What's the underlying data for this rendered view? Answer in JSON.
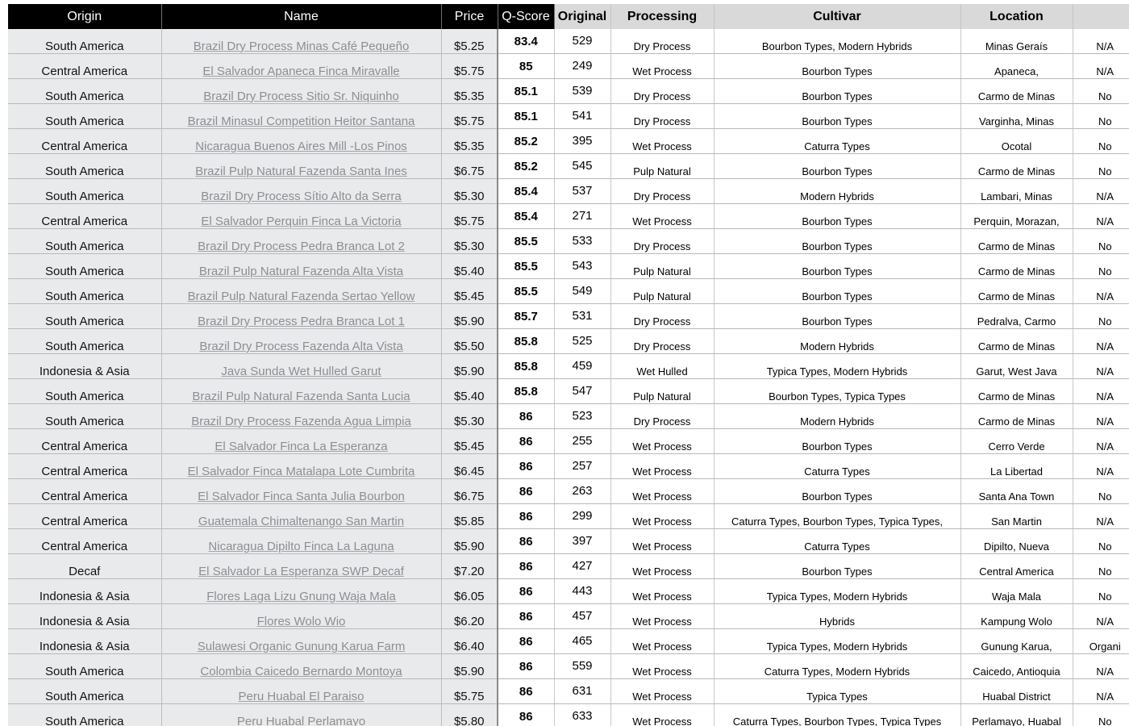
{
  "headers": {
    "origin": "Origin",
    "name": "Name",
    "price": "Price",
    "q_score": "Q-Score",
    "original": "Original",
    "processing": "Processing",
    "cultivar": "Cultivar",
    "location": "Location",
    "flag": ""
  },
  "rows": [
    {
      "origin": "South America",
      "name": "Brazil Dry Process Minas Café Pequeño",
      "price": "$5.25",
      "q_score": "83.4",
      "original": "529",
      "processing": "Dry Process",
      "cultivar": "Bourbon Types, Modern Hybrids",
      "location": "Minas Geraís",
      "flag": "N/A"
    },
    {
      "origin": "Central America",
      "name": "El Salvador Apaneca Finca Miravalle",
      "price": "$5.75",
      "q_score": "85",
      "original": "249",
      "processing": "Wet Process",
      "cultivar": "Bourbon Types",
      "location": "Apaneca,",
      "flag": "N/A"
    },
    {
      "origin": "South America",
      "name": "Brazil Dry Process Sitio Sr. Niquinho",
      "price": "$5.35",
      "q_score": "85.1",
      "original": "539",
      "processing": "Dry Process",
      "cultivar": "Bourbon Types",
      "location": "Carmo de Minas",
      "flag": "No"
    },
    {
      "origin": "South America",
      "name": "Brazil Minasul Competition Heitor Santana",
      "price": "$5.75",
      "q_score": "85.1",
      "original": "541",
      "processing": "Dry Process",
      "cultivar": "Bourbon Types",
      "location": "Varginha, Minas",
      "flag": "No"
    },
    {
      "origin": "Central America",
      "name": "Nicaragua Buenos Aires Mill -Los Pinos",
      "price": "$5.35",
      "q_score": "85.2",
      "original": "395",
      "processing": "Wet Process",
      "cultivar": "Caturra Types",
      "location": "Ocotal",
      "flag": "No"
    },
    {
      "origin": "South America",
      "name": "Brazil Pulp Natural Fazenda Santa Ines",
      "price": "$6.75",
      "q_score": "85.2",
      "original": "545",
      "processing": "Pulp Natural",
      "cultivar": "Bourbon Types",
      "location": "Carmo de Minas",
      "flag": "No"
    },
    {
      "origin": "South America",
      "name": "Brazil Dry Process Sítio Alto da Serra",
      "price": "$5.30",
      "q_score": "85.4",
      "original": "537",
      "processing": "Dry Process",
      "cultivar": "Modern Hybrids",
      "location": "Lambari, Minas",
      "flag": "N/A"
    },
    {
      "origin": "Central America",
      "name": "El Salvador Perquin Finca La Victoria",
      "price": "$5.75",
      "q_score": "85.4",
      "original": "271",
      "processing": "Wet Process",
      "cultivar": "Bourbon Types",
      "location": "Perquin, Morazan,",
      "flag": "N/A"
    },
    {
      "origin": "South America",
      "name": "Brazil Dry Process Pedra Branca Lot 2",
      "price": "$5.30",
      "q_score": "85.5",
      "original": "533",
      "processing": "Dry Process",
      "cultivar": "Bourbon Types",
      "location": "Carmo de Minas",
      "flag": "No"
    },
    {
      "origin": "South America",
      "name": "Brazil Pulp Natural Fazenda Alta Vista",
      "price": "$5.40",
      "q_score": "85.5",
      "original": "543",
      "processing": "Pulp Natural",
      "cultivar": "Bourbon Types",
      "location": "Carmo de Minas",
      "flag": "No"
    },
    {
      "origin": "South America",
      "name": "Brazil Pulp Natural Fazenda Sertao Yellow",
      "price": "$5.45",
      "q_score": "85.5",
      "original": "549",
      "processing": "Pulp Natural",
      "cultivar": "Bourbon Types",
      "location": "Carmo de Minas",
      "flag": "N/A"
    },
    {
      "origin": "South America",
      "name": "Brazil Dry Process Pedra Branca Lot 1",
      "price": "$5.90",
      "q_score": "85.7",
      "original": "531",
      "processing": "Dry Process",
      "cultivar": "Bourbon Types",
      "location": "Pedralva, Carmo",
      "flag": "No"
    },
    {
      "origin": "South America",
      "name": "Brazil Dry Process Fazenda Alta Vista",
      "price": "$5.50",
      "q_score": "85.8",
      "original": "525",
      "processing": "Dry Process",
      "cultivar": "Modern Hybrids",
      "location": "Carmo de Minas",
      "flag": "N/A"
    },
    {
      "origin": "Indonesia & Asia",
      "name": "Java Sunda Wet Hulled Garut",
      "price": "$5.90",
      "q_score": "85.8",
      "original": "459",
      "processing": "Wet Hulled",
      "cultivar": "Typica Types, Modern Hybrids",
      "location": "Garut, West Java",
      "flag": "N/A"
    },
    {
      "origin": "South America",
      "name": "Brazil Pulp Natural Fazenda Santa Lucia",
      "price": "$5.40",
      "q_score": "85.8",
      "original": "547",
      "processing": "Pulp Natural",
      "cultivar": "Bourbon Types, Typica Types",
      "location": "Carmo de Minas",
      "flag": "N/A"
    },
    {
      "origin": "South America",
      "name": "Brazil Dry Process Fazenda Agua Limpia",
      "price": "$5.30",
      "q_score": "86",
      "original": "523",
      "processing": "Dry Process",
      "cultivar": "Modern Hybrids",
      "location": "Carmo de Minas",
      "flag": "N/A"
    },
    {
      "origin": "Central America",
      "name": "El Salvador Finca La Esperanza",
      "price": "$5.45",
      "q_score": "86",
      "original": "255",
      "processing": "Wet Process",
      "cultivar": "Bourbon Types",
      "location": "Cerro Verde",
      "flag": "N/A"
    },
    {
      "origin": "Central America",
      "name": "El Salvador Finca Matalapa Lote Cumbrita",
      "price": "$6.45",
      "q_score": "86",
      "original": "257",
      "processing": "Wet Process",
      "cultivar": "Caturra Types",
      "location": "La Libertad",
      "flag": "N/A"
    },
    {
      "origin": "Central America",
      "name": "El Salvador Finca Santa Julia Bourbon",
      "price": "$6.75",
      "q_score": "86",
      "original": "263",
      "processing": "Wet Process",
      "cultivar": "Bourbon Types",
      "location": "Santa Ana Town",
      "flag": "No"
    },
    {
      "origin": "Central America",
      "name": "Guatemala Chimaltenango San Martin",
      "price": "$5.85",
      "q_score": "86",
      "original": "299",
      "processing": "Wet Process",
      "cultivar": "Caturra Types, Bourbon Types, Typica Types,",
      "location": "San Martin",
      "flag": "N/A"
    },
    {
      "origin": "Central America",
      "name": "Nicaragua Dipilto Finca La Laguna",
      "price": "$5.90",
      "q_score": "86",
      "original": "397",
      "processing": "Wet Process",
      "cultivar": "Caturra Types",
      "location": "Dipilto, Nueva",
      "flag": "No"
    },
    {
      "origin": "Decaf",
      "name": "El Salvador La Esperanza SWP Decaf",
      "price": "$7.20",
      "q_score": "86",
      "original": "427",
      "processing": "Wet Process",
      "cultivar": "Bourbon Types",
      "location": "Central America",
      "flag": "No"
    },
    {
      "origin": "Indonesia & Asia",
      "name": "Flores Laga Lizu Gnung Waja Mala",
      "price": "$6.05",
      "q_score": "86",
      "original": "443",
      "processing": "Wet Process",
      "cultivar": "Typica Types, Modern Hybrids",
      "location": "Waja Mala",
      "flag": "No"
    },
    {
      "origin": "Indonesia & Asia",
      "name": "Flores Wolo Wio",
      "price": "$6.20",
      "q_score": "86",
      "original": "457",
      "processing": "Wet Process",
      "cultivar": "Hybrids",
      "location": "Kampung Wolo",
      "flag": "N/A"
    },
    {
      "origin": "Indonesia & Asia",
      "name": "Sulawesi Organic Gunung Karua Farm",
      "price": "$6.40",
      "q_score": "86",
      "original": "465",
      "processing": "Wet Process",
      "cultivar": "Typica Types, Modern Hybrids",
      "location": "Gunung Karua,",
      "flag": "Organi"
    },
    {
      "origin": "South America",
      "name": "Colombia Caicedo Bernardo Montoya",
      "price": "$5.90",
      "q_score": "86",
      "original": "559",
      "processing": "Wet Process",
      "cultivar": "Caturra Types, Modern Hybrids",
      "location": "Caicedo, Antioquia",
      "flag": "N/A"
    },
    {
      "origin": "South America",
      "name": "Peru Huabal El Paraiso",
      "price": "$5.75",
      "q_score": "86",
      "original": "631",
      "processing": "Wet Process",
      "cultivar": "Typica Types",
      "location": "Huabal District",
      "flag": "N/A"
    },
    {
      "origin": "South America",
      "name": "Peru Huabal Perlamayo",
      "price": "$5.80",
      "q_score": "86",
      "original": "633",
      "processing": "Wet Process",
      "cultivar": "Caturra Types, Bourbon Types, Typica Types",
      "location": "Perlamayo, Huabal",
      "flag": "No"
    }
  ]
}
